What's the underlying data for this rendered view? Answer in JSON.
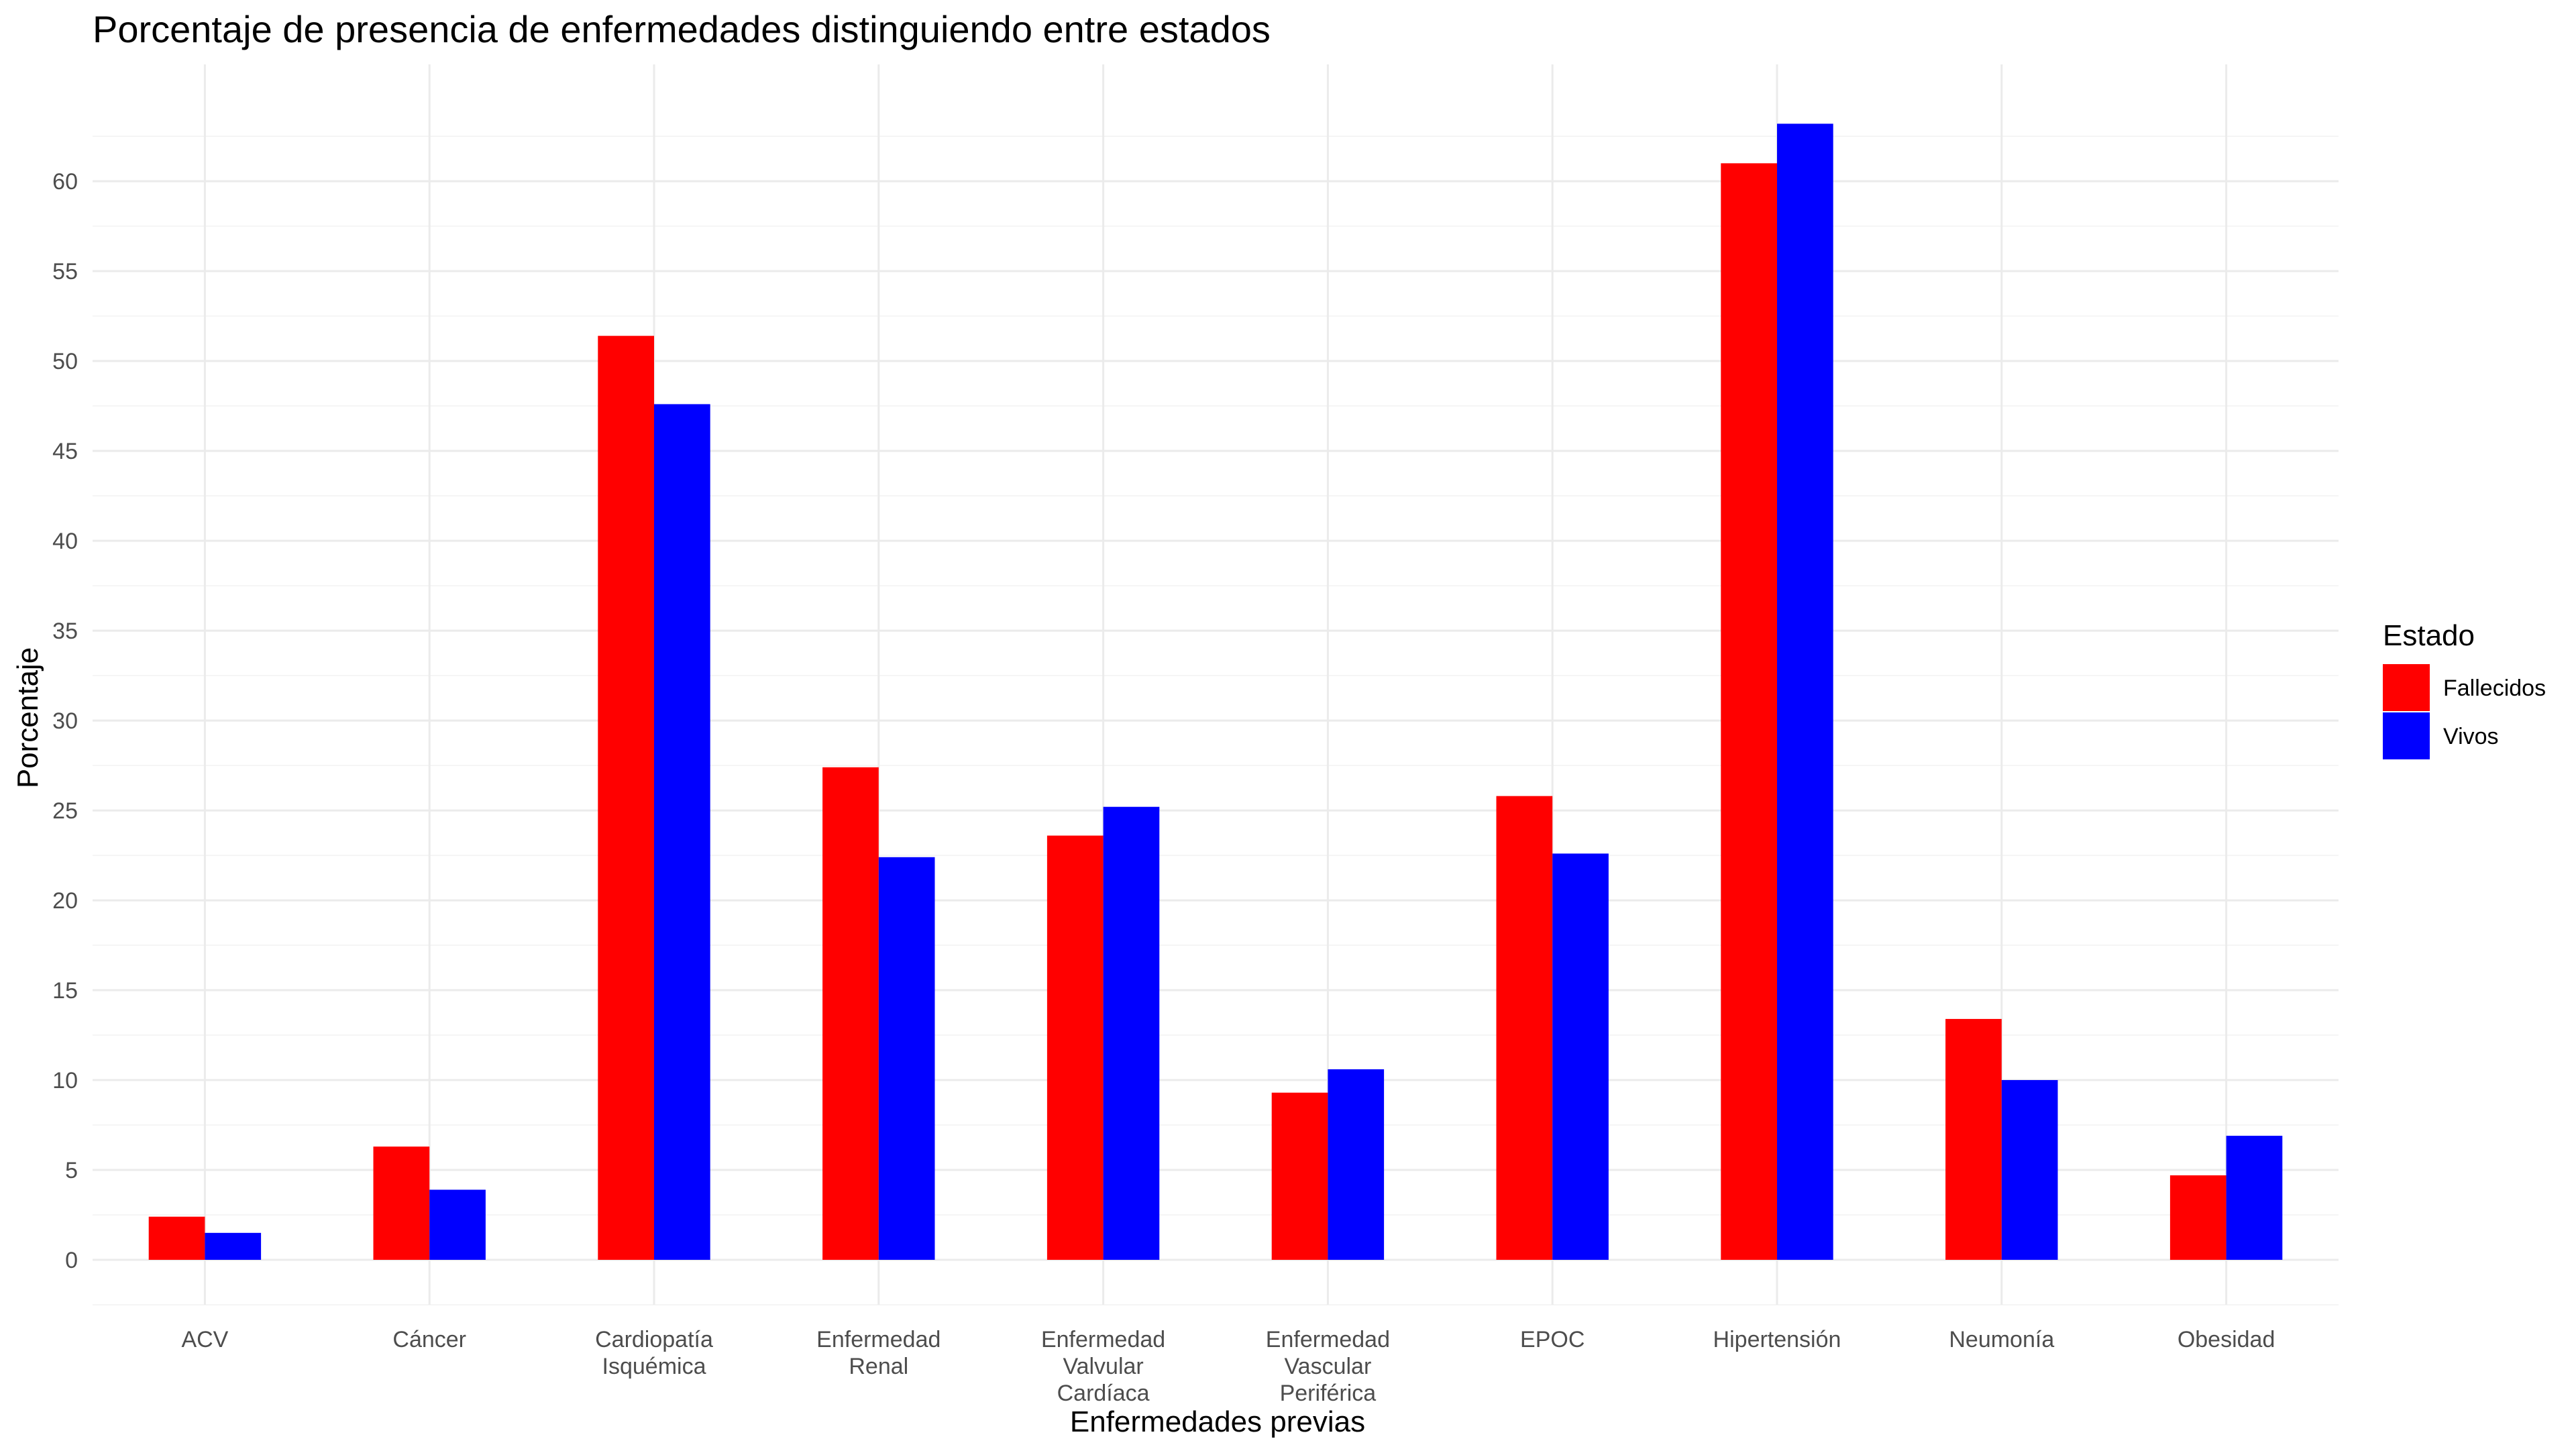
{
  "chart_data": {
    "type": "bar",
    "title": "Porcentaje de presencia de enfermedades distinguiendo entre estados",
    "xlabel": "Enfermedades previas",
    "ylabel": "Porcentaje",
    "ylim": [
      -2.5,
      66.5
    ],
    "yticks": [
      0,
      5,
      10,
      15,
      20,
      25,
      30,
      35,
      40,
      45,
      50,
      55,
      60
    ],
    "ytick_labels": [
      "0",
      "5",
      "10",
      "15",
      "20",
      "25",
      "30",
      "35",
      "40",
      "45",
      "50",
      "55",
      "60"
    ],
    "grid": true,
    "legend_position": "right",
    "legend_title": "Estado",
    "categories": [
      [
        "ACV"
      ],
      [
        "Cáncer"
      ],
      [
        "Cardiopatía",
        "Isquémica"
      ],
      [
        "Enfermedad",
        "Renal"
      ],
      [
        "Enfermedad",
        "Valvular",
        "Cardíaca"
      ],
      [
        "Enfermedad",
        "Vascular",
        "Periférica"
      ],
      [
        "EPOC"
      ],
      [
        "Hipertensión"
      ],
      [
        "Neumonía"
      ],
      [
        "Obesidad"
      ]
    ],
    "series": [
      {
        "name": "Fallecidos",
        "color": "#ff0000",
        "values": [
          2.4,
          6.3,
          51.4,
          27.4,
          23.6,
          9.3,
          25.8,
          61.0,
          13.4,
          4.7
        ]
      },
      {
        "name": "Vivos",
        "color": "#0000ff",
        "values": [
          1.5,
          3.9,
          47.6,
          22.4,
          25.2,
          10.6,
          22.6,
          63.2,
          10.0,
          6.9
        ]
      }
    ]
  }
}
